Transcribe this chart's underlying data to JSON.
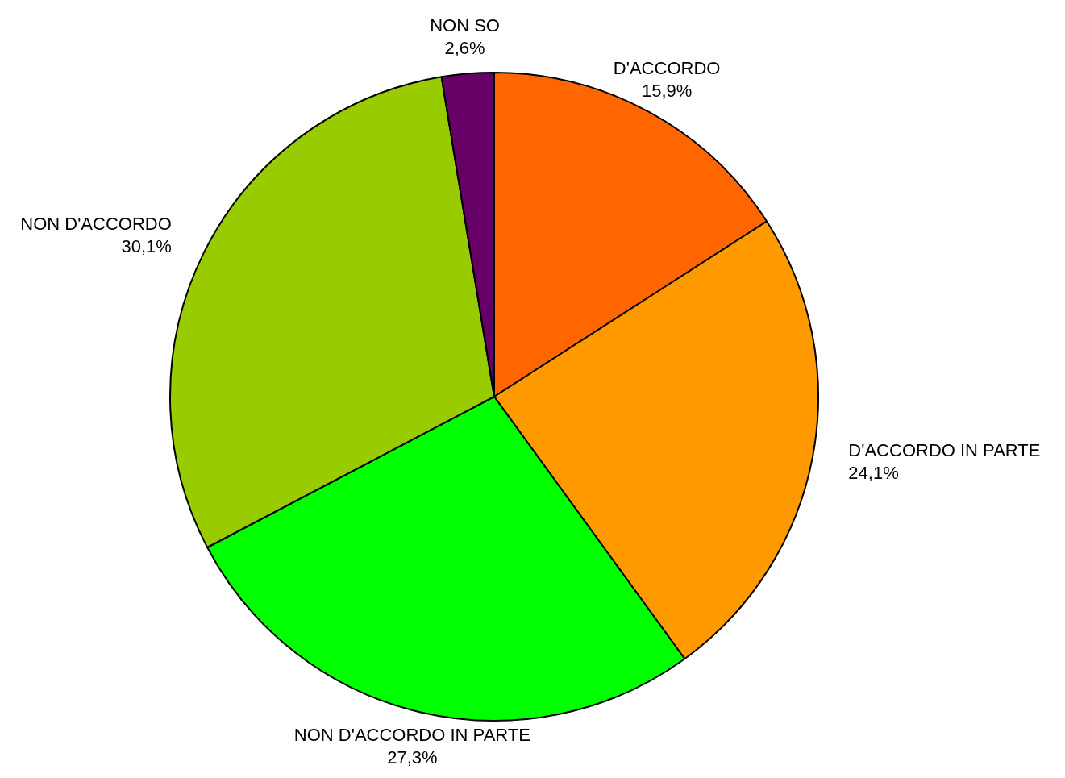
{
  "chart_data": {
    "type": "pie",
    "categories": [
      "D'ACCORDO",
      "D'ACCORDO IN PARTE",
      "NON D'ACCORDO IN PARTE",
      "NON D'ACCORDO",
      "NON SO"
    ],
    "values": [
      15.9,
      24.1,
      27.3,
      30.1,
      2.6
    ],
    "colors": [
      "#ff6600",
      "#ff9900",
      "#00ff00",
      "#99cc00",
      "#660066"
    ],
    "value_labels": [
      "15,9%",
      "24,1%",
      "27,3%",
      "30,1%",
      "2,6%"
    ],
    "legend": false
  }
}
